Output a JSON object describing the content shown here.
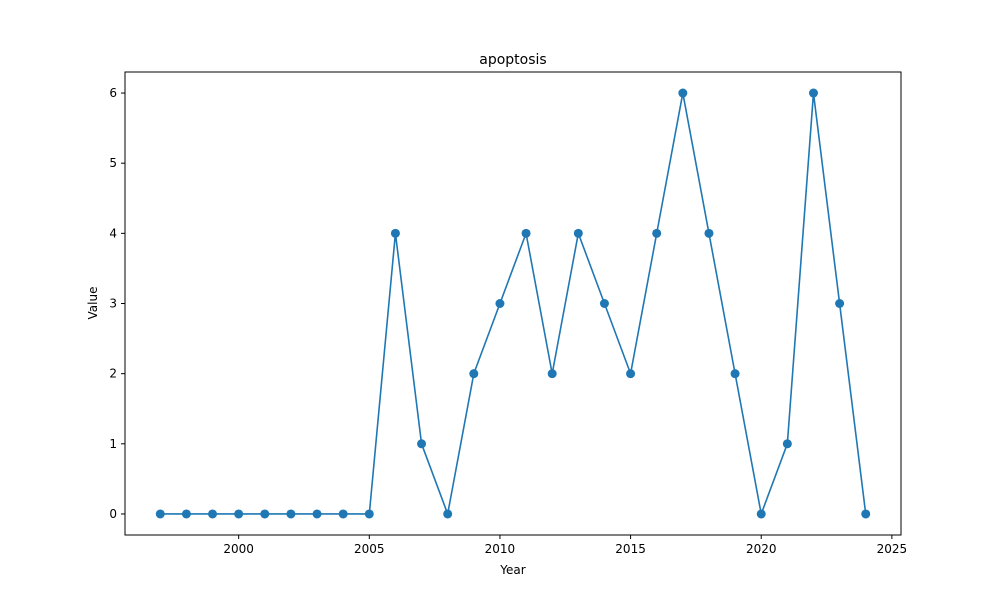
{
  "chart_data": {
    "type": "line",
    "title": "apoptosis",
    "xlabel": "Year",
    "ylabel": "Value",
    "xlim": [
      1995.65,
      2025.35
    ],
    "ylim": [
      -0.3,
      6.3
    ],
    "xticks": [
      2000,
      2005,
      2010,
      2015,
      2020,
      2025
    ],
    "yticks": [
      0,
      1,
      2,
      3,
      4,
      5,
      6
    ],
    "grid": false,
    "legend": "none",
    "color": "#1f77b4",
    "series": [
      {
        "x": [
          1997,
          1998,
          1999,
          2000,
          2001,
          2002,
          2003,
          2004,
          2005,
          2006,
          2007,
          2008,
          2009,
          2010,
          2011,
          2012,
          2013,
          2014,
          2015,
          2016,
          2017,
          2018,
          2019,
          2020,
          2021,
          2022,
          2023,
          2024
        ],
        "values": [
          0,
          0,
          0,
          0,
          0,
          0,
          0,
          0,
          0,
          4,
          1,
          0,
          2,
          3,
          4,
          2,
          4,
          3,
          2,
          4,
          6,
          4,
          2,
          0,
          1,
          6,
          3,
          0
        ]
      }
    ]
  }
}
